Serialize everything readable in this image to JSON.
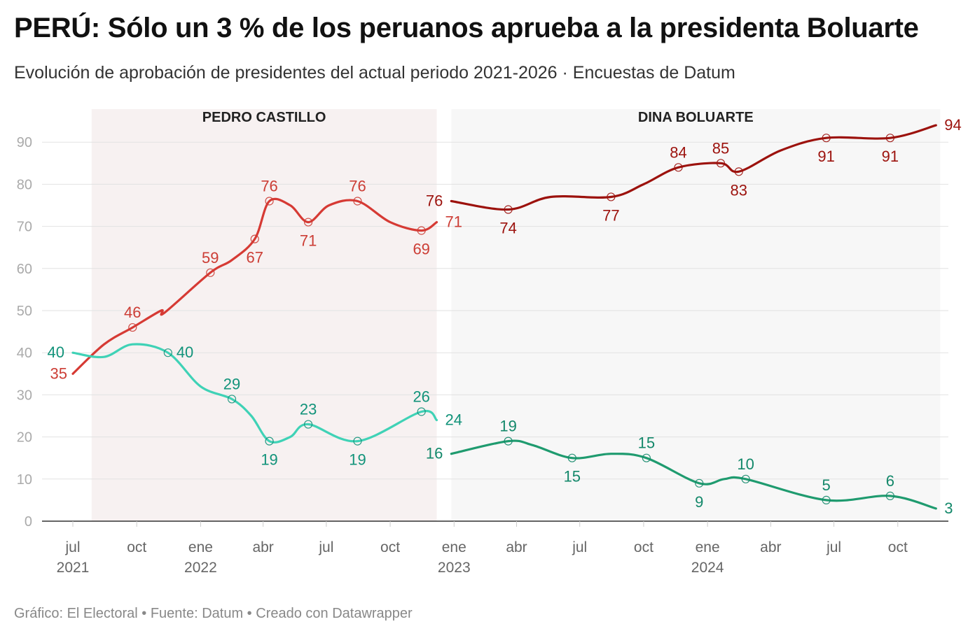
{
  "header": {
    "title": "PERÚ: Sólo un 3 % de los peruanos aprueba a la presidenta Boluarte",
    "subtitle": "Evolución de aprobación de presidentes del actual periodo 2021-2026 · Encuestas de Datum"
  },
  "footer": {
    "text": "Gráfico: El Electoral • Fuente: Datum • Creado con Datawrapper"
  },
  "chart_data": {
    "type": "line",
    "ylim": [
      0,
      95
    ],
    "yticks": [
      0,
      10,
      20,
      30,
      40,
      50,
      60,
      70,
      80,
      90
    ],
    "grid": true,
    "xtick_labels": [
      {
        "date": "2021-07-01",
        "label": "jul",
        "year": "2021"
      },
      {
        "date": "2021-10-01",
        "label": "oct",
        "year": ""
      },
      {
        "date": "2022-01-01",
        "label": "ene",
        "year": "2022"
      },
      {
        "date": "2022-04-01",
        "label": "abr",
        "year": ""
      },
      {
        "date": "2022-07-01",
        "label": "jul",
        "year": ""
      },
      {
        "date": "2022-10-01",
        "label": "oct",
        "year": ""
      },
      {
        "date": "2023-01-01",
        "label": "ene",
        "year": "2023"
      },
      {
        "date": "2023-04-01",
        "label": "abr",
        "year": ""
      },
      {
        "date": "2023-07-01",
        "label": "jul",
        "year": ""
      },
      {
        "date": "2023-10-01",
        "label": "oct",
        "year": ""
      },
      {
        "date": "2024-01-01",
        "label": "ene",
        "year": "2024"
      },
      {
        "date": "2024-04-01",
        "label": "abr",
        "year": ""
      },
      {
        "date": "2024-07-01",
        "label": "jul",
        "year": ""
      },
      {
        "date": "2024-10-01",
        "label": "oct",
        "year": ""
      }
    ],
    "periods": [
      {
        "label": "PEDRO CASTILLO",
        "start": "2021-07-28",
        "end": "2022-12-07"
      },
      {
        "label": "DINA BOLUARTE",
        "start": "2022-12-28",
        "end": "2024-12-01"
      }
    ],
    "series": [
      {
        "color": "#d63a34",
        "label_color": "#cc3d35",
        "points": [
          {
            "date": "2021-07-01",
            "y": 35,
            "label": "35",
            "pos": "below-left"
          },
          {
            "date": "2021-08-15",
            "y": 42
          },
          {
            "date": "2021-09-25",
            "y": 46,
            "label": "46",
            "pos": "above",
            "marker": true
          },
          {
            "date": "2021-11-05",
            "y": 50
          },
          {
            "date": "2021-11-10",
            "y": 49.5
          },
          {
            "date": "2022-01-15",
            "y": 59,
            "label": "59",
            "pos": "above",
            "marker": true
          },
          {
            "date": "2022-02-15",
            "y": 62
          },
          {
            "date": "2022-03-20",
            "y": 67,
            "label": "67",
            "pos": "below",
            "marker": true
          },
          {
            "date": "2022-04-10",
            "y": 76,
            "label": "76",
            "pos": "above",
            "marker": true
          },
          {
            "date": "2022-05-10",
            "y": 75
          },
          {
            "date": "2022-06-05",
            "y": 71,
            "label": "71",
            "pos": "below",
            "marker": true
          },
          {
            "date": "2022-07-05",
            "y": 75
          },
          {
            "date": "2022-08-15",
            "y": 76,
            "label": "76",
            "pos": "above",
            "marker": true
          },
          {
            "date": "2022-10-01",
            "y": 71
          },
          {
            "date": "2022-11-15",
            "y": 69,
            "label": "69",
            "pos": "below",
            "marker": true
          },
          {
            "date": "2022-12-07",
            "y": 71,
            "label": "71",
            "pos": "right"
          }
        ]
      },
      {
        "color": "#3fd2b6",
        "label_color": "#12937a",
        "points": [
          {
            "date": "2021-07-01",
            "y": 40,
            "label": "40",
            "pos": "left"
          },
          {
            "date": "2021-08-15",
            "y": 39
          },
          {
            "date": "2021-09-25",
            "y": 42
          },
          {
            "date": "2021-11-15",
            "y": 40,
            "label": "40",
            "pos": "right",
            "marker": true
          },
          {
            "date": "2022-01-01",
            "y": 32
          },
          {
            "date": "2022-02-15",
            "y": 29,
            "label": "29",
            "pos": "above",
            "marker": true
          },
          {
            "date": "2022-03-15",
            "y": 25
          },
          {
            "date": "2022-04-10",
            "y": 19,
            "label": "19",
            "pos": "below",
            "marker": true
          },
          {
            "date": "2022-05-10",
            "y": 20
          },
          {
            "date": "2022-06-05",
            "y": 23,
            "label": "23",
            "pos": "above",
            "marker": true
          },
          {
            "date": "2022-08-15",
            "y": 19,
            "label": "19",
            "pos": "below",
            "marker": true
          },
          {
            "date": "2022-11-15",
            "y": 26,
            "label": "26",
            "pos": "above",
            "marker": true
          },
          {
            "date": "2022-12-07",
            "y": 24,
            "label": "24",
            "pos": "right"
          }
        ]
      },
      {
        "color": "#9c120d",
        "label_color": "#9c120d",
        "points": [
          {
            "date": "2022-12-28",
            "y": 76,
            "label": "76",
            "pos": "left"
          },
          {
            "date": "2023-03-20",
            "y": 74,
            "label": "74",
            "pos": "below",
            "marker": true
          },
          {
            "date": "2023-05-20",
            "y": 77
          },
          {
            "date": "2023-08-15",
            "y": 77,
            "label": "77",
            "pos": "below",
            "marker": true
          },
          {
            "date": "2023-10-01",
            "y": 80
          },
          {
            "date": "2023-11-20",
            "y": 84,
            "label": "84",
            "pos": "above",
            "marker": true
          },
          {
            "date": "2024-01-20",
            "y": 85,
            "label": "85",
            "pos": "above",
            "marker": true
          },
          {
            "date": "2024-02-15",
            "y": 83,
            "label": "83",
            "pos": "below",
            "marker": true
          },
          {
            "date": "2024-04-15",
            "y": 88
          },
          {
            "date": "2024-06-20",
            "y": 91,
            "label": "91",
            "pos": "below",
            "marker": true
          },
          {
            "date": "2024-09-20",
            "y": 91,
            "label": "91",
            "pos": "below",
            "marker": true
          },
          {
            "date": "2024-11-25",
            "y": 94,
            "label": "94",
            "pos": "right"
          }
        ]
      },
      {
        "color": "#1f9b6f",
        "label_color": "#13886a",
        "points": [
          {
            "date": "2022-12-28",
            "y": 16,
            "label": "16",
            "pos": "left"
          },
          {
            "date": "2023-03-20",
            "y": 19,
            "label": "19",
            "pos": "above",
            "marker": true
          },
          {
            "date": "2023-04-25",
            "y": 18
          },
          {
            "date": "2023-06-20",
            "y": 15,
            "label": "15",
            "pos": "below",
            "marker": true
          },
          {
            "date": "2023-08-15",
            "y": 16
          },
          {
            "date": "2023-10-05",
            "y": 15,
            "label": "15",
            "pos": "above",
            "marker": true
          },
          {
            "date": "2023-12-20",
            "y": 9,
            "label": "9",
            "pos": "below",
            "marker": true
          },
          {
            "date": "2024-01-25",
            "y": 10
          },
          {
            "date": "2024-02-25",
            "y": 10,
            "label": "10",
            "pos": "above",
            "marker": true
          },
          {
            "date": "2024-06-20",
            "y": 5,
            "label": "5",
            "pos": "above",
            "marker": true
          },
          {
            "date": "2024-09-20",
            "y": 6,
            "label": "6",
            "pos": "above",
            "marker": true
          },
          {
            "date": "2024-11-25",
            "y": 3,
            "label": "3",
            "pos": "right"
          }
        ]
      }
    ]
  }
}
